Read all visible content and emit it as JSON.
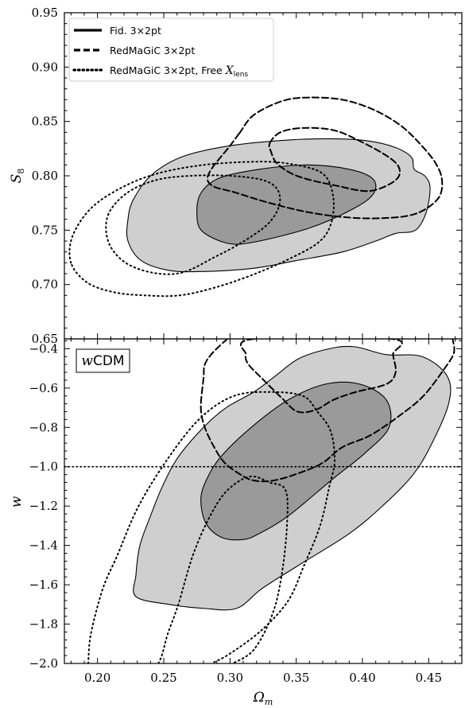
{
  "chart_data": [
    {
      "type": "contour",
      "panel": "top",
      "xlim": [
        0.175,
        0.475
      ],
      "ylim": [
        0.65,
        0.95
      ],
      "xlabel": "",
      "ylabel": "S8",
      "ylabel_main": "S",
      "ylabel_sub": "8",
      "xticks": [
        0.2,
        0.25,
        0.3,
        0.35,
        0.4,
        0.45
      ],
      "yticks": [
        0.65,
        0.7,
        0.75,
        0.8,
        0.85,
        0.9,
        0.95
      ],
      "ytick_labels": [
        "0.65",
        "0.70",
        "0.75",
        "0.80",
        "0.85",
        "0.90",
        "0.95"
      ],
      "legend": {
        "placement": "top-left",
        "entries": [
          {
            "label": "Fid. 3×2pt",
            "style": "solid"
          },
          {
            "label": "RedMaGiC 3×2pt",
            "style": "dashed"
          },
          {
            "label_main": "RedMaGiC 3×2pt, Free ",
            "label_math": "X",
            "label_sub": "lens",
            "style": "dotted"
          }
        ]
      },
      "series": [
        {
          "style": "solid",
          "level": "68%",
          "fill": "#9a9a9a",
          "points": [
            [
              0.278,
              0.784
            ],
            [
              0.292,
              0.798
            ],
            [
              0.322,
              0.806
            ],
            [
              0.358,
              0.81
            ],
            [
              0.39,
              0.806
            ],
            [
              0.408,
              0.797
            ],
            [
              0.408,
              0.783
            ],
            [
              0.392,
              0.769
            ],
            [
              0.36,
              0.752
            ],
            [
              0.318,
              0.739
            ],
            [
              0.298,
              0.738
            ],
            [
              0.279,
              0.749
            ],
            [
              0.275,
              0.765
            ]
          ]
        },
        {
          "style": "solid",
          "level": "95%",
          "fill": "#cfcfcf",
          "points": [
            [
              0.227,
              0.778
            ],
            [
              0.241,
              0.801
            ],
            [
              0.265,
              0.818
            ],
            [
              0.302,
              0.828
            ],
            [
              0.345,
              0.833
            ],
            [
              0.38,
              0.834
            ],
            [
              0.405,
              0.832
            ],
            [
              0.425,
              0.826
            ],
            [
              0.437,
              0.817
            ],
            [
              0.439,
              0.806
            ],
            [
              0.447,
              0.8
            ],
            [
              0.451,
              0.789
            ],
            [
              0.448,
              0.766
            ],
            [
              0.44,
              0.75
            ],
            [
              0.425,
              0.747
            ],
            [
              0.41,
              0.74
            ],
            [
              0.385,
              0.73
            ],
            [
              0.35,
              0.722
            ],
            [
              0.318,
              0.715
            ],
            [
              0.28,
              0.712
            ],
            [
              0.254,
              0.713
            ],
            [
              0.233,
              0.722
            ],
            [
              0.223,
              0.74
            ],
            [
              0.223,
              0.76
            ]
          ]
        },
        {
          "style": "dashed",
          "level": "68%",
          "points": [
            [
              0.33,
              0.83
            ],
            [
              0.338,
              0.84
            ],
            [
              0.355,
              0.844
            ],
            [
              0.378,
              0.842
            ],
            [
              0.398,
              0.832
            ],
            [
              0.42,
              0.817
            ],
            [
              0.428,
              0.806
            ],
            [
              0.424,
              0.795
            ],
            [
              0.405,
              0.786
            ],
            [
              0.38,
              0.791
            ],
            [
              0.358,
              0.797
            ],
            [
              0.345,
              0.803
            ],
            [
              0.335,
              0.812
            ],
            [
              0.331,
              0.822
            ]
          ]
        },
        {
          "style": "dashed",
          "level": "95%",
          "points": [
            [
              0.307,
              0.839
            ],
            [
              0.318,
              0.856
            ],
            [
              0.34,
              0.869
            ],
            [
              0.36,
              0.872
            ],
            [
              0.385,
              0.87
            ],
            [
              0.408,
              0.861
            ],
            [
              0.428,
              0.847
            ],
            [
              0.443,
              0.83
            ],
            [
              0.455,
              0.812
            ],
            [
              0.46,
              0.796
            ],
            [
              0.457,
              0.779
            ],
            [
              0.44,
              0.765
            ],
            [
              0.414,
              0.761
            ],
            [
              0.386,
              0.762
            ],
            [
              0.357,
              0.767
            ],
            [
              0.327,
              0.776
            ],
            [
              0.303,
              0.785
            ],
            [
              0.288,
              0.79
            ],
            [
              0.283,
              0.797
            ],
            [
              0.287,
              0.808
            ],
            [
              0.299,
              0.826
            ]
          ]
        },
        {
          "style": "dotted",
          "level": "68%",
          "points": [
            [
              0.208,
              0.764
            ],
            [
              0.222,
              0.784
            ],
            [
              0.244,
              0.796
            ],
            [
              0.27,
              0.8
            ],
            [
              0.3,
              0.8
            ],
            [
              0.325,
              0.796
            ],
            [
              0.336,
              0.787
            ],
            [
              0.337,
              0.772
            ],
            [
              0.328,
              0.755
            ],
            [
              0.308,
              0.738
            ],
            [
              0.288,
              0.725
            ],
            [
              0.264,
              0.711
            ],
            [
              0.241,
              0.711
            ],
            [
              0.22,
              0.721
            ],
            [
              0.208,
              0.74
            ]
          ]
        },
        {
          "style": "dotted",
          "level": "95%",
          "points": [
            [
              0.18,
              0.72
            ],
            [
              0.181,
              0.744
            ],
            [
              0.195,
              0.77
            ],
            [
              0.218,
              0.789
            ],
            [
              0.245,
              0.802
            ],
            [
              0.28,
              0.81
            ],
            [
              0.32,
              0.813
            ],
            [
              0.345,
              0.811
            ],
            [
              0.37,
              0.802
            ],
            [
              0.378,
              0.78
            ],
            [
              0.376,
              0.755
            ],
            [
              0.366,
              0.738
            ],
            [
              0.342,
              0.722
            ],
            [
              0.315,
              0.708
            ],
            [
              0.288,
              0.697
            ],
            [
              0.262,
              0.69
            ],
            [
              0.236,
              0.69
            ],
            [
              0.212,
              0.693
            ],
            [
              0.192,
              0.702
            ]
          ]
        }
      ]
    },
    {
      "type": "contour",
      "panel": "bottom",
      "xlim": [
        0.175,
        0.475
      ],
      "ylim": [
        -2.0,
        -0.35
      ],
      "xlabel": "Ωm",
      "xlabel_main": "Ω",
      "xlabel_sub": "m",
      "ylabel": "w",
      "panel_label_math": "w",
      "panel_label_text": "CDM",
      "xticks": [
        0.2,
        0.25,
        0.3,
        0.35,
        0.4,
        0.45
      ],
      "xtick_labels": [
        "0.20",
        "0.25",
        "0.30",
        "0.35",
        "0.40",
        "0.45"
      ],
      "yticks": [
        -2.0,
        -1.8,
        -1.6,
        -1.4,
        -1.2,
        -1.0,
        -0.8,
        -0.6,
        -0.4
      ],
      "ytick_labels": [
        "−2.0",
        "−1.8",
        "−1.6",
        "−1.4",
        "−1.2",
        "−1.0",
        "−0.8",
        "−0.6",
        "−0.4"
      ],
      "reference_line": {
        "y": -1.0,
        "style": "dotted"
      },
      "series": [
        {
          "style": "solid",
          "level": "68%",
          "fill": "#9a9a9a",
          "points": [
            [
              0.278,
              -1.17
            ],
            [
              0.282,
              -1.29
            ],
            [
              0.294,
              -1.36
            ],
            [
              0.31,
              -1.37
            ],
            [
              0.322,
              -1.34
            ],
            [
              0.344,
              -1.25
            ],
            [
              0.378,
              -1.06
            ],
            [
              0.402,
              -0.93
            ],
            [
              0.42,
              -0.8
            ],
            [
              0.418,
              -0.66
            ],
            [
              0.398,
              -0.58
            ],
            [
              0.372,
              -0.58
            ],
            [
              0.344,
              -0.66
            ],
            [
              0.316,
              -0.8
            ],
            [
              0.293,
              -0.95
            ],
            [
              0.282,
              -1.07
            ]
          ]
        },
        {
          "style": "solid",
          "level": "95%",
          "fill": "#cfcfcf",
          "points": [
            [
              0.229,
              -1.66
            ],
            [
              0.254,
              -1.7
            ],
            [
              0.28,
              -1.72
            ],
            [
              0.305,
              -1.72
            ],
            [
              0.324,
              -1.62
            ],
            [
              0.352,
              -1.5
            ],
            [
              0.39,
              -1.34
            ],
            [
              0.415,
              -1.2
            ],
            [
              0.437,
              -1.05
            ],
            [
              0.451,
              -0.9
            ],
            [
              0.465,
              -0.68
            ],
            [
              0.464,
              -0.54
            ],
            [
              0.445,
              -0.44
            ],
            [
              0.418,
              -0.43
            ],
            [
              0.394,
              -0.39
            ],
            [
              0.375,
              -0.4
            ],
            [
              0.352,
              -0.45
            ],
            [
              0.334,
              -0.54
            ],
            [
              0.318,
              -0.62
            ],
            [
              0.297,
              -0.7
            ],
            [
              0.28,
              -0.8
            ],
            [
              0.261,
              -0.95
            ],
            [
              0.249,
              -1.1
            ],
            [
              0.24,
              -1.25
            ],
            [
              0.232,
              -1.4
            ],
            [
              0.229,
              -1.55
            ]
          ]
        },
        {
          "style": "dashed",
          "level": "68%",
          "points": [
            [
              0.318,
              -0.35
            ],
            [
              0.312,
              -0.43
            ],
            [
              0.314,
              -0.48
            ],
            [
              0.324,
              -0.55
            ],
            [
              0.339,
              -0.65
            ],
            [
              0.351,
              -0.72
            ],
            [
              0.365,
              -0.71
            ],
            [
              0.378,
              -0.66
            ],
            [
              0.395,
              -0.62
            ],
            [
              0.418,
              -0.58
            ],
            [
              0.425,
              -0.52
            ],
            [
              0.423,
              -0.43
            ],
            [
              0.422,
              -0.35
            ]
          ]
        },
        {
          "style": "dashed",
          "level": "95%",
          "open": true,
          "points": [
            [
              0.298,
              -0.35
            ],
            [
              0.287,
              -0.42
            ],
            [
              0.281,
              -0.48
            ],
            [
              0.28,
              -0.55
            ],
            [
              0.278,
              -0.7
            ],
            [
              0.281,
              -0.8
            ],
            [
              0.288,
              -0.9
            ],
            [
              0.296,
              -0.98
            ],
            [
              0.308,
              -1.04
            ],
            [
              0.318,
              -1.07
            ],
            [
              0.333,
              -1.07
            ],
            [
              0.353,
              -1.03
            ],
            [
              0.37,
              -0.98
            ],
            [
              0.385,
              -0.9
            ],
            [
              0.406,
              -0.84
            ],
            [
              0.428,
              -0.74
            ],
            [
              0.446,
              -0.64
            ],
            [
              0.462,
              -0.5
            ],
            [
              0.469,
              -0.42
            ],
            [
              0.468,
              -0.35
            ]
          ]
        },
        {
          "style": "dotted",
          "level": "68%",
          "open": true,
          "points": [
            [
              0.246,
              -2.0
            ],
            [
              0.249,
              -1.95
            ],
            [
              0.253,
              -1.85
            ],
            [
              0.261,
              -1.7
            ],
            [
              0.272,
              -1.45
            ],
            [
              0.285,
              -1.25
            ],
            [
              0.298,
              -1.12
            ],
            [
              0.315,
              -1.05
            ],
            [
              0.33,
              -1.08
            ],
            [
              0.342,
              -1.12
            ],
            [
              0.343,
              -1.3
            ],
            [
              0.339,
              -1.55
            ],
            [
              0.332,
              -1.75
            ],
            [
              0.318,
              -1.93
            ],
            [
              0.302,
              -2.0
            ]
          ]
        },
        {
          "style": "dotted",
          "level": "95%",
          "open": true,
          "points": [
            [
              0.193,
              -2.0
            ],
            [
              0.195,
              -1.85
            ],
            [
              0.204,
              -1.62
            ],
            [
              0.215,
              -1.45
            ],
            [
              0.231,
              -1.2
            ],
            [
              0.254,
              -0.95
            ],
            [
              0.278,
              -0.75
            ],
            [
              0.303,
              -0.64
            ],
            [
              0.33,
              -0.62
            ],
            [
              0.355,
              -0.64
            ],
            [
              0.366,
              -0.72
            ],
            [
              0.376,
              -0.82
            ],
            [
              0.379,
              -0.97
            ],
            [
              0.375,
              -1.1
            ],
            [
              0.368,
              -1.3
            ],
            [
              0.356,
              -1.5
            ],
            [
              0.344,
              -1.68
            ],
            [
              0.324,
              -1.83
            ],
            [
              0.3,
              -1.95
            ],
            [
              0.286,
              -2.0
            ]
          ]
        }
      ]
    }
  ]
}
